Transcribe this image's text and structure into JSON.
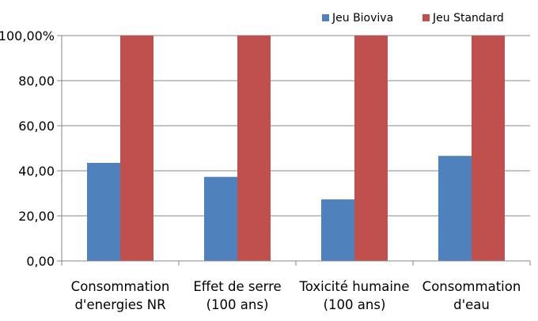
{
  "chart_data": {
    "type": "bar",
    "categories": [
      [
        "Consommation",
        "d'energies NR"
      ],
      [
        "Effet de serre",
        "(100 ans)"
      ],
      [
        "Toxicité humaine",
        "(100 ans)"
      ],
      [
        "Consommation",
        "d'eau"
      ]
    ],
    "series": [
      {
        "name": "Jeu Bioviva",
        "color": "#4F81BD",
        "values": [
          43.5,
          37.3,
          27.3,
          46.6
        ]
      },
      {
        "name": "Jeu Standard",
        "color": "#C0504D",
        "values": [
          100,
          100,
          100,
          100
        ]
      }
    ],
    "yticks": [
      {
        "value": 0,
        "label": "0,00"
      },
      {
        "value": 20,
        "label": "20,00"
      },
      {
        "value": 40,
        "label": "40,00"
      },
      {
        "value": 60,
        "label": "60,00"
      },
      {
        "value": 80,
        "label": "80,00"
      },
      {
        "value": 100,
        "label": "100,00%"
      }
    ],
    "ylim": [
      0,
      100
    ],
    "grid": true,
    "legend_position": "top-right",
    "title": "",
    "xlabel": "",
    "ylabel": ""
  }
}
